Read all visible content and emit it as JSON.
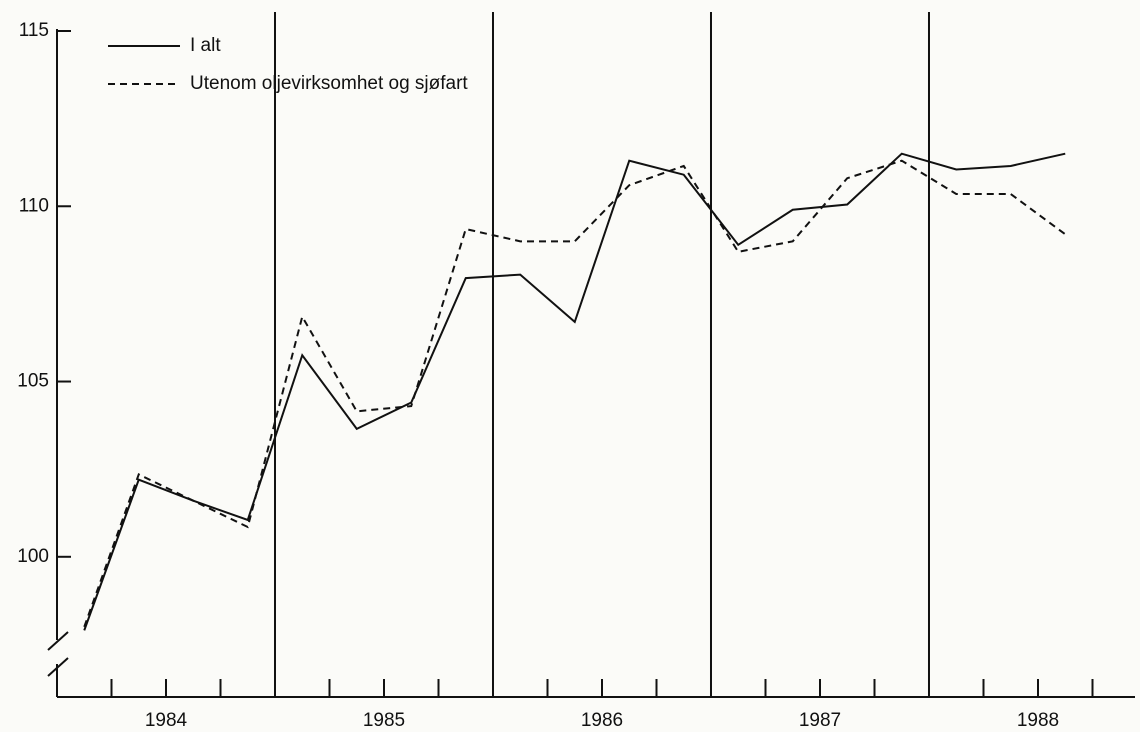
{
  "chart_data": {
    "type": "line",
    "x": [
      1984.125,
      1984.375,
      1984.625,
      1984.875,
      1985.125,
      1985.375,
      1985.625,
      1985.875,
      1986.125,
      1986.375,
      1986.625,
      1986.875,
      1987.125,
      1987.375,
      1987.625,
      1987.875,
      1988.125,
      1988.375,
      1988.625
    ],
    "series": [
      {
        "name": "I alt",
        "color": "#111111",
        "dash": "solid",
        "values": [
          97.9,
          102.2,
          101.6,
          101.05,
          105.75,
          103.65,
          104.4,
          107.95,
          108.05,
          106.7,
          111.3,
          110.9,
          108.9,
          109.9,
          110.05,
          111.5,
          111.05,
          111.15,
          111.5
        ]
      },
      {
        "name": "Utenom oljevirksomhet og sjøfart",
        "color": "#111111",
        "dash": "dashed",
        "values": [
          98.0,
          102.35,
          101.6,
          100.85,
          106.85,
          104.15,
          104.3,
          109.35,
          109.0,
          109.0,
          110.6,
          111.15,
          108.7,
          109.0,
          110.8,
          111.3,
          110.35,
          110.35,
          109.2
        ]
      }
    ],
    "xlim": [
      1984,
      1988.945
    ],
    "xticks": [
      {
        "value": 1984.5,
        "label": "1984"
      },
      {
        "value": 1985.5,
        "label": "1985"
      },
      {
        "value": 1986.5,
        "label": "1986"
      },
      {
        "value": 1987.5,
        "label": "1987"
      },
      {
        "value": 1988.5,
        "label": "1988"
      }
    ],
    "minor_xticks": [
      1984.25,
      1984.75,
      1985.25,
      1985.75,
      1986.25,
      1986.75,
      1987.25,
      1987.75,
      1988.25,
      1988.75
    ],
    "vlines": [
      1985,
      1986,
      1987,
      1988
    ],
    "ylim": [
      96,
      115
    ],
    "yticks": [
      100,
      105,
      110,
      115
    ],
    "legend": "top-left"
  }
}
